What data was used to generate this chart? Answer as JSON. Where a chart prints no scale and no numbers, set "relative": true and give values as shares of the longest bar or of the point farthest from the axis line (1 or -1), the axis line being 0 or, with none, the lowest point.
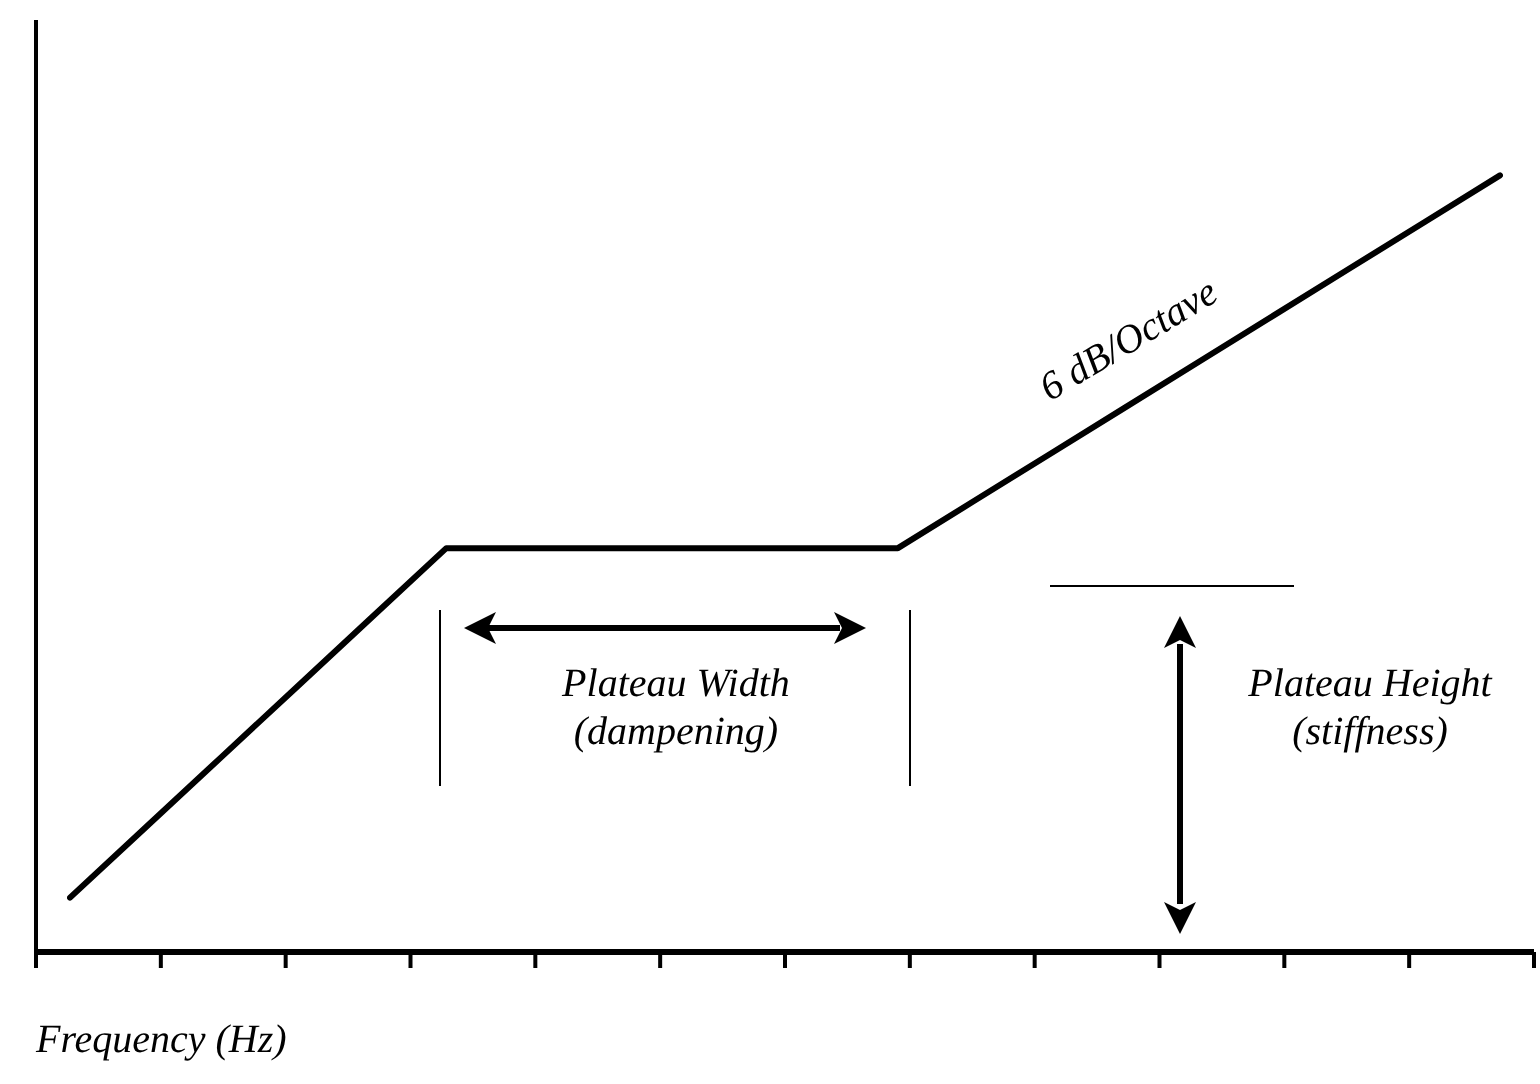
{
  "chart_data": {
    "type": "line",
    "relative": true,
    "xlabel": "Frequency (Hz)",
    "categories": [
      null,
      null,
      null,
      null,
      null,
      null,
      null,
      null,
      null,
      null,
      null,
      null,
      null,
      null,
      null,
      null,
      null,
      null,
      null,
      null
    ],
    "series": [
      {
        "color": "#000000",
        "values": [
          0.07,
          0.16,
          0.25,
          0.34,
          0.43,
          0.52,
          0.52,
          0.52,
          0.52,
          0.52,
          0.52,
          0.52,
          0.58,
          0.64,
          0.7,
          0.76,
          0.82,
          0.88,
          0.94,
          1
        ]
      }
    ],
    "annotations": [
      "6 dB/Octave",
      "Plateau Width (dampening)",
      "Plateau Height (stiffness)"
    ],
    "legend": false,
    "marker": "none",
    "line_style": "solid"
  }
}
